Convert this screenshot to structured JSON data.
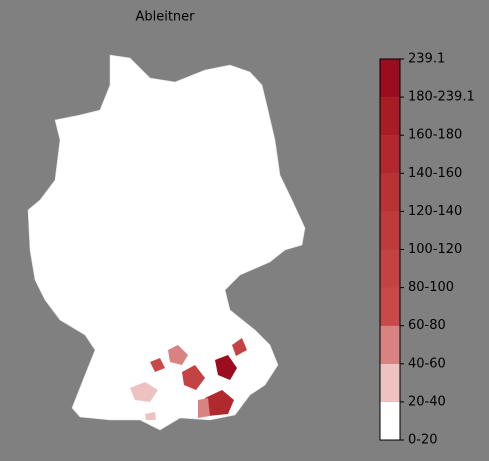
{
  "title": "Ableitner",
  "legend": {
    "labels": [
      "0-20",
      "20-40",
      "40-60",
      "60-80",
      "80-100",
      "100-120",
      "120-140",
      "140-160",
      "160-180",
      "180-239.1",
      "239.1"
    ],
    "colors": [
      "#ffffff",
      "#efc2c2",
      "#d98282",
      "#c9484a",
      "#c44244",
      "#be3a3d",
      "#b83236",
      "#b1292f",
      "#a81c26",
      "#9b0c1f"
    ]
  }
}
